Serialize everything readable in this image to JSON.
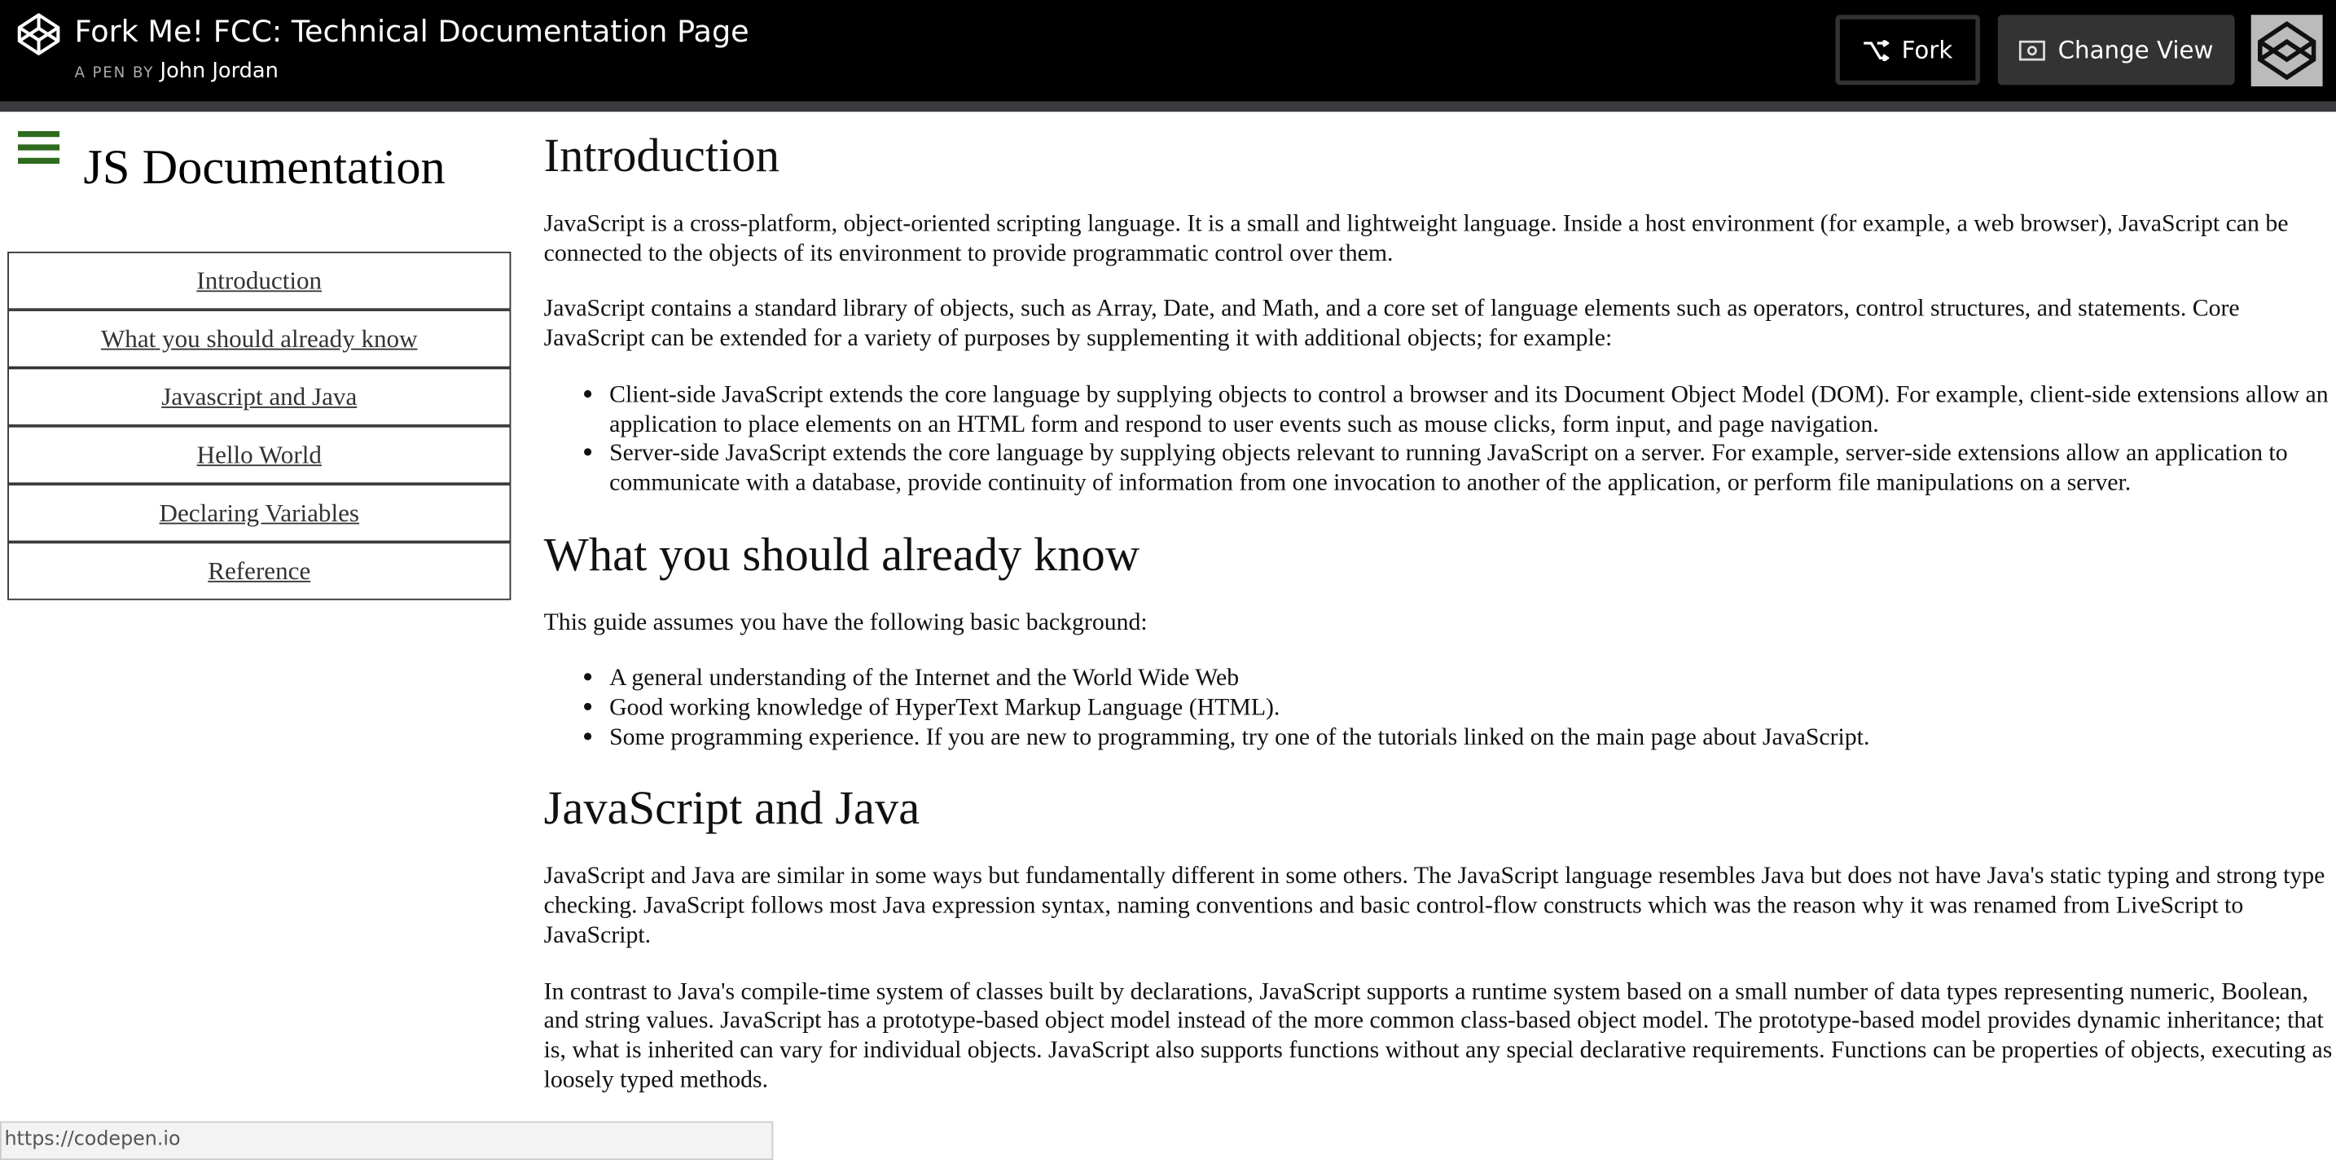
{
  "header": {
    "title": "Fork Me! FCC: Technical Documentation Page",
    "pen_by_label": "A PEN BY",
    "author": "John Jordan",
    "fork_button": "Fork",
    "change_view_button": "Change View"
  },
  "sidebar": {
    "title": "JS Documentation",
    "nav": [
      "Introduction",
      "What you should already know",
      "Javascript and Java",
      "Hello World",
      "Declaring Variables",
      "Reference"
    ]
  },
  "main": {
    "sections": [
      {
        "heading": "Introduction",
        "blocks": [
          {
            "p": "JavaScript is a cross-platform, object-oriented scripting language. It is a small and lightweight language. Inside a host environment (for example, a web browser), JavaScript can be connected to the objects of its environment to provide programmatic control over them."
          },
          {
            "p": "JavaScript contains a standard library of objects, such as Array, Date, and Math, and a core set of language elements such as operators, control structures, and statements. Core JavaScript can be extended for a variety of purposes by supplementing it with additional objects; for example:"
          },
          {
            "ul": [
              "Client-side JavaScript extends the core language by supplying objects to control a browser and its Document Object Model (DOM). For example, client-side extensions allow an application to place elements on an HTML form and respond to user events such as mouse clicks, form input, and page navigation.",
              "Server-side JavaScript extends the core language by supplying objects relevant to running JavaScript on a server. For example, server-side extensions allow an application to communicate with a database, provide continuity of information from one invocation to another of the application, or perform file manipulations on a server."
            ]
          }
        ]
      },
      {
        "heading": "What you should already know",
        "blocks": [
          {
            "p": "This guide assumes you have the following basic background:"
          },
          {
            "ul": [
              "A general understanding of the Internet and the World Wide Web",
              "Good working knowledge of HyperText Markup Language (HTML).",
              "Some programming experience. If you are new to programming, try one of the tutorials linked on the main page about JavaScript."
            ]
          }
        ]
      },
      {
        "heading": "JavaScript and Java",
        "blocks": [
          {
            "p": "JavaScript and Java are similar in some ways but fundamentally different in some others. The JavaScript language resembles Java but does not have Java's static typing and strong type checking. JavaScript follows most Java expression syntax, naming conventions and basic control-flow constructs which was the reason why it was renamed from LiveScript to JavaScript."
          },
          {
            "p": "In contrast to Java's compile-time system of classes built by declarations, JavaScript supports a runtime system based on a small number of data types representing numeric, Boolean, and string values. JavaScript has a prototype-based object model instead of the more common class-based object model. The prototype-based model provides dynamic inheritance; that is, what is inherited can vary for individual objects. JavaScript also supports functions without any special declarative requirements. Functions can be properties of objects, executing as loosely typed methods."
          }
        ]
      }
    ]
  },
  "status_url": "https://codepen.io"
}
